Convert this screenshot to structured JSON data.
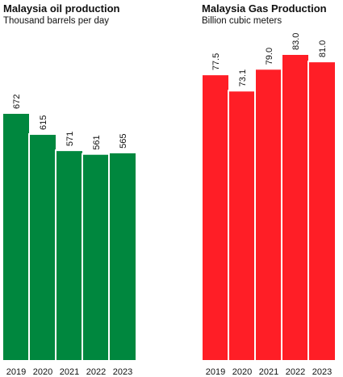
{
  "chart_data": [
    {
      "type": "bar",
      "title": "Malaysia oil production",
      "subtitle": "Thousand barrels per day",
      "categories": [
        "2019",
        "2020",
        "2021",
        "2022",
        "2023"
      ],
      "values": [
        672,
        615,
        571,
        561,
        565
      ],
      "value_labels": [
        "672",
        "615",
        "571",
        "561",
        "565"
      ],
      "color": "#00873e",
      "xlabel": "",
      "ylabel": "",
      "ylim": [
        0,
        672
      ],
      "grid": false
    },
    {
      "type": "bar",
      "title": "Malaysia Gas Production",
      "subtitle": "Billion cubic meters",
      "categories": [
        "2019",
        "2020",
        "2021",
        "2022",
        "2023"
      ],
      "values": [
        77.5,
        73.1,
        79.0,
        83.0,
        81.0
      ],
      "value_labels": [
        "77.5",
        "73.1",
        "79.0",
        "83.0",
        "81.0"
      ],
      "color": "#ff1e26",
      "xlabel": "",
      "ylabel": "",
      "ylim": [
        0,
        83.0
      ],
      "grid": false
    }
  ]
}
